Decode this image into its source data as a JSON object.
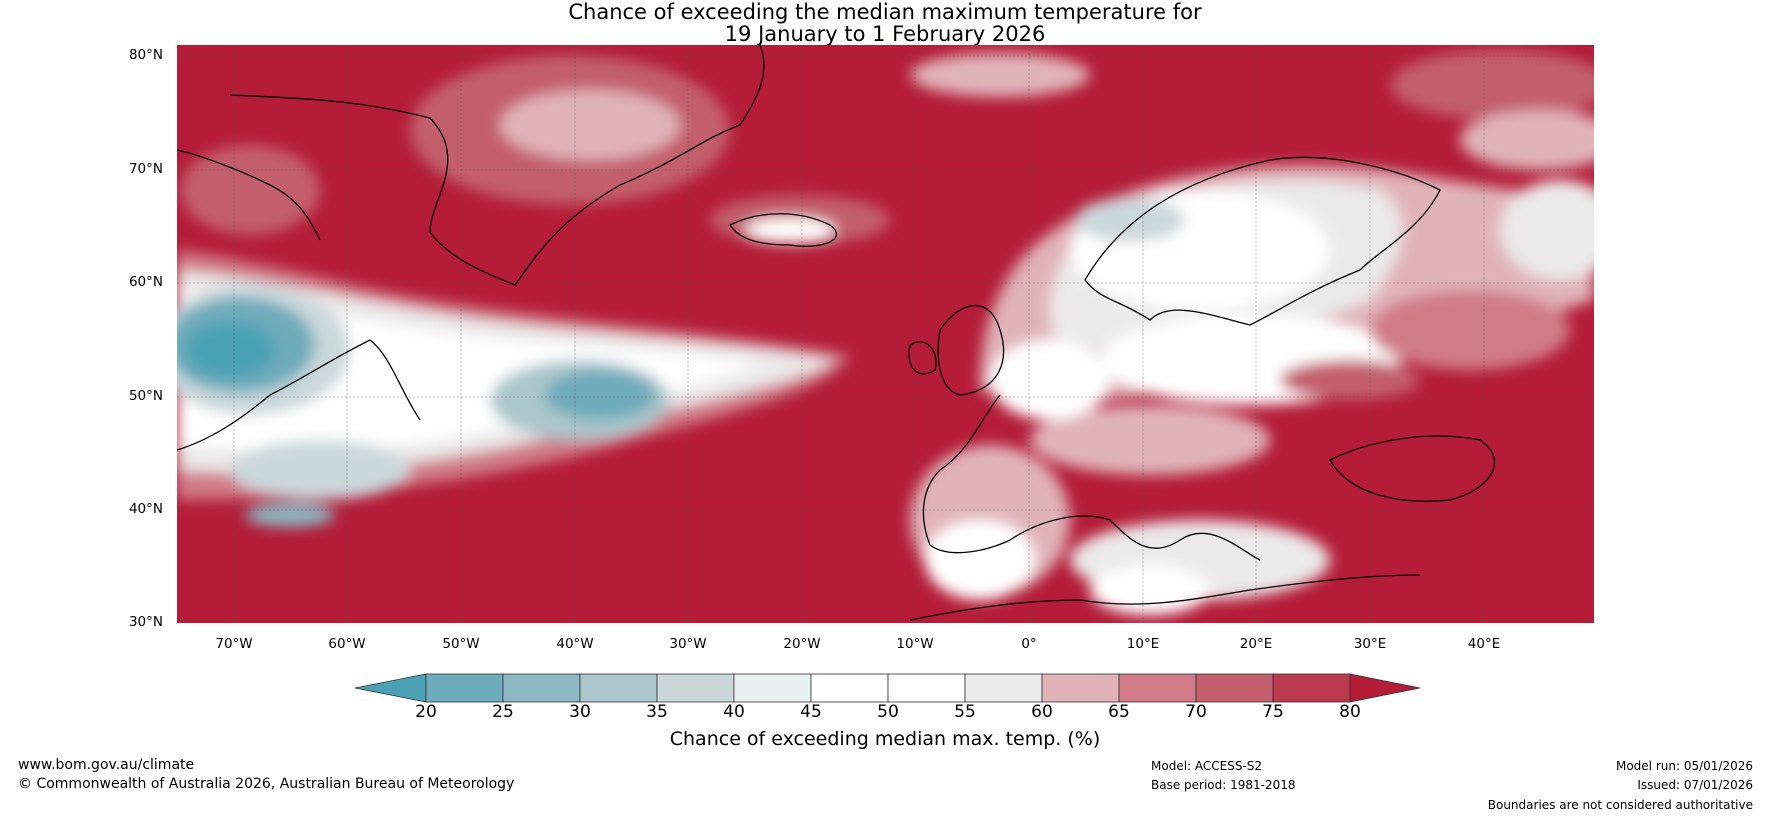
{
  "title": {
    "line1": "Chance of exceeding the median maximum temperature for",
    "line2": "19 January to 1 February 2026"
  },
  "map": {
    "latitude_labels": [
      "80°N",
      "70°N",
      "60°N",
      "50°N",
      "40°N",
      "30°N"
    ],
    "longitude_labels": [
      "70°W",
      "60°W",
      "50°W",
      "40°W",
      "30°W",
      "20°W",
      "10°W",
      "0°",
      "10°E",
      "20°E",
      "30°E",
      "40°E"
    ],
    "extent": {
      "lon_min": -75,
      "lon_max": 50,
      "lat_min": 30,
      "lat_max": 81
    },
    "dominant_color": "#b41c38"
  },
  "colorbar": {
    "label": "Chance of exceeding median max. temp. (%)",
    "ticks": [
      "20",
      "25",
      "30",
      "35",
      "40",
      "45",
      "50",
      "55",
      "60",
      "65",
      "70",
      "75",
      "80"
    ],
    "colors": [
      "#4aa2b4",
      "#6eabbb",
      "#8cb7c3",
      "#abc6cc",
      "#cad8dc",
      "#e9f0f2",
      "#ffffff",
      "#ffffff",
      "#ebe9e9",
      "#e0b3b9",
      "#d07b87",
      "#c35f6c",
      "#bb3a4e",
      "#b41c38"
    ]
  },
  "footer": {
    "website": "www.bom.gov.au/climate",
    "copyright": "© Commonwealth of Australia 2026, Australian Bureau of Meteorology",
    "model": "Model: ACCESS-S2",
    "base_period": "Base period: 1981-2018",
    "model_run": "Model run: 05/01/2026",
    "issued": "Issued: 07/01/2026",
    "disclaimer": "Boundaries are not considered authoritative"
  }
}
